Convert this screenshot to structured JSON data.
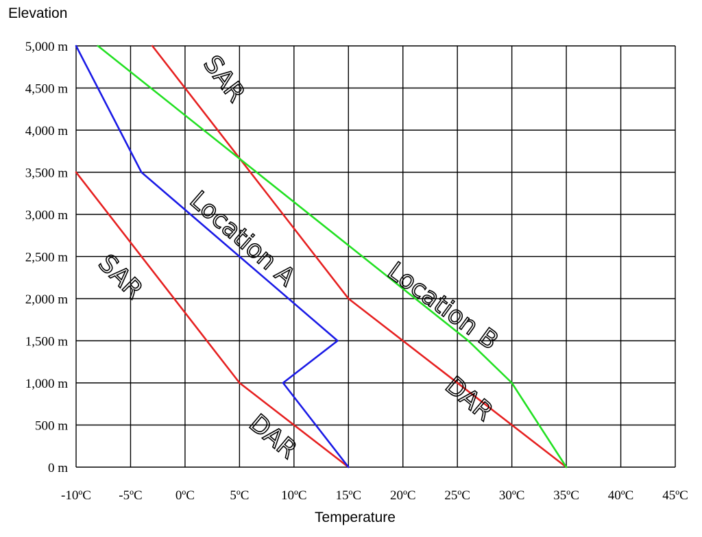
{
  "chart_data": {
    "type": "line",
    "ylabel": "Elevation",
    "xlabel": "Temperature",
    "xlim": [
      -10,
      45
    ],
    "ylim": [
      0,
      5000
    ],
    "grid": true,
    "x_ticks": [
      -10,
      -5,
      0,
      5,
      10,
      15,
      20,
      25,
      30,
      35,
      40,
      45
    ],
    "x_tick_labels": [
      "-10ºC",
      "-5ºC",
      "0ºC",
      "5ºC",
      "10ºC",
      "15ºC",
      "20ºC",
      "25ºC",
      "30ºC",
      "35ºC",
      "40ºC",
      "45ºC"
    ],
    "y_ticks": [
      0,
      500,
      1000,
      1500,
      2000,
      2500,
      3000,
      3500,
      4000,
      4500,
      5000
    ],
    "y_tick_labels": [
      "0 m",
      "500 m",
      "1,000 m",
      "1,500 m",
      "2,000 m",
      "2,500 m",
      "3,000 m",
      "3,500 m",
      "4,000 m",
      "4,500 m",
      "5,000 m"
    ],
    "series": [
      {
        "color": "#e62020",
        "points": [
          [
            15,
            0
          ],
          [
            5,
            1000
          ],
          [
            -10,
            3500
          ]
        ]
      },
      {
        "color": "#1a1ae6",
        "points": [
          [
            15,
            0
          ],
          [
            9,
            1000
          ],
          [
            14,
            1500
          ],
          [
            -4,
            3500
          ],
          [
            -10,
            5000
          ]
        ]
      },
      {
        "color": "#e62020",
        "points": [
          [
            35,
            0
          ],
          [
            15,
            2000
          ],
          [
            -3,
            5000
          ]
        ]
      },
      {
        "color": "#22e022",
        "points": [
          [
            35,
            0
          ],
          [
            30,
            1000
          ],
          [
            26,
            1500
          ],
          [
            -8,
            5000
          ]
        ]
      }
    ],
    "annotations": [
      {
        "text": "SAR",
        "x": -6.0,
        "y": 2250,
        "angle": 45
      },
      {
        "text": "DAR",
        "x": 8.0,
        "y": 350,
        "angle": 40
      },
      {
        "text": "Location A",
        "x": 5.2,
        "y": 2700,
        "angle": 41
      },
      {
        "text": "SAR",
        "x": 3.5,
        "y": 4600,
        "angle": 53
      },
      {
        "text": "Location B",
        "x": 23.6,
        "y": 1900,
        "angle": 36
      },
      {
        "text": "DAR",
        "x": 26.0,
        "y": 800,
        "angle": 40
      }
    ]
  }
}
